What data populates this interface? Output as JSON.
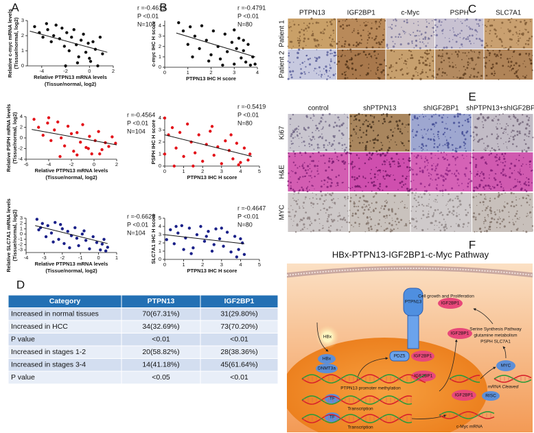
{
  "panel_labels": [
    "A",
    "B",
    "C",
    "D",
    "E",
    "F"
  ],
  "chart_data": [
    {
      "type": "scatter",
      "color": "#111111",
      "xlabel": [
        "Relative PTPN13 mRNA levels",
        "(Tissue/normal, log2)"
      ],
      "ylabel": [
        "Relative c-myc mRNA levels",
        "(Tissue/normal, log2)"
      ],
      "annotations": [
        "r =-0.4613",
        "P <0.01",
        "N=104"
      ],
      "xlim": [
        -5.2,
        2
      ],
      "ylim": [
        0,
        3
      ],
      "xticks": [
        -4,
        -2,
        0,
        2
      ],
      "yticks": [
        0,
        1,
        2,
        3
      ],
      "x": [
        -4.6,
        -4.2,
        -3.9,
        -3.5,
        -3.2,
        -3.0,
        -2.8,
        -2.5,
        -2.3,
        -2.1,
        -1.9,
        -1.7,
        -1.5,
        -1.3,
        -1.1,
        -0.9,
        -0.7,
        -0.5,
        -0.3,
        -0.1,
        0.1,
        0.3,
        0.5,
        0.7,
        0.9,
        1.1,
        -2.0,
        -1.0,
        0.0,
        -3.6
      ],
      "y": [
        2.6,
        2.2,
        1.9,
        2.4,
        1.6,
        2.0,
        2.7,
        1.8,
        2.5,
        1.3,
        2.2,
        1.0,
        1.9,
        2.4,
        1.4,
        0.6,
        1.7,
        2.1,
        0.9,
        1.5,
        0.3,
        1.6,
        1.1,
        0.0,
        1.9,
        0.8,
        0.0,
        0.2,
        0.5,
        2.8
      ],
      "trendline": {
        "x": [
          -5,
          1.5
        ],
        "y": [
          2.3,
          0.9
        ]
      }
    },
    {
      "type": "scatter",
      "color": "#e3141b",
      "xlabel": [
        "Relative PTPN13 mRNA levels",
        "(Tissue/normal, log2)"
      ],
      "ylabel": [
        "Relative PSPH mRNA levels",
        "(Tissue/normal, log2)"
      ],
      "annotations": [
        "r =-0.4564",
        "P <0.01",
        "N=104"
      ],
      "xlim": [
        -6,
        2
      ],
      "ylim": [
        -4,
        4
      ],
      "xticks": [
        -6,
        -4,
        -2,
        0,
        2
      ],
      "yticks": [
        -4,
        -2,
        0,
        2,
        4
      ],
      "x": [
        -5.3,
        -4.9,
        -4.5,
        -4.1,
        -3.8,
        -3.5,
        -3.2,
        -2.9,
        -2.6,
        -2.3,
        -2.0,
        -1.8,
        -1.5,
        -1.2,
        -1.0,
        -0.7,
        -0.4,
        -0.2,
        0.1,
        0.4,
        0.7,
        1.0,
        1.3,
        1.6,
        1.9,
        -3.0,
        -1.5,
        -0.5,
        0.5,
        -4.0
      ],
      "y": [
        3.5,
        2.0,
        0.5,
        2.8,
        -0.5,
        1.5,
        3.0,
        0.0,
        -1.5,
        2.2,
        0.8,
        -2.5,
        1.0,
        -0.8,
        2.5,
        -1.8,
        0.3,
        -3.0,
        -0.5,
        1.2,
        -2.2,
        -0.9,
        -1.6,
        0.2,
        -1.0,
        -3.5,
        -3.2,
        -2.0,
        -3.0,
        3.8
      ],
      "trendline": {
        "x": [
          -5.5,
          2
        ],
        "y": [
          1.6,
          -1.3
        ]
      }
    },
    {
      "type": "scatter",
      "color": "#1b2189",
      "xlabel": [
        "Relative PTPN13 mRNA levels",
        "(Tissue/normal, log2)"
      ],
      "ylabel": [
        "Relative SLC7A1 mRNA levels",
        "(Tissue/normal, log2)"
      ],
      "annotations": [
        "r =-0.6629",
        "P <0.01",
        "N=104"
      ],
      "xlim": [
        -4,
        1
      ],
      "ylim": [
        -3.5,
        3
      ],
      "xticks": [
        -4,
        -3,
        -2,
        -1,
        0,
        1
      ],
      "yticks": [
        -3,
        -2,
        -1,
        0,
        1,
        2,
        3
      ],
      "x": [
        -3.4,
        -3.3,
        -3.1,
        -2.9,
        -2.8,
        -2.6,
        -2.4,
        -2.2,
        -2.0,
        -1.9,
        -1.7,
        -1.5,
        -1.3,
        -1.1,
        -0.9,
        -0.7,
        -0.5,
        -0.3,
        -0.1,
        0.1,
        0.3,
        0.5,
        -2.5,
        -1.6,
        -0.8,
        0.2,
        -3.2,
        -2.1,
        -1.2,
        0.4
      ],
      "y": [
        2.8,
        0.8,
        2.0,
        -0.5,
        1.6,
        0.2,
        2.2,
        -1.0,
        1.0,
        -1.8,
        0.5,
        -0.3,
        1.2,
        -2.2,
        0.0,
        -1.2,
        -2.8,
        -0.5,
        -1.6,
        -3.0,
        -1.0,
        -2.5,
        -1.5,
        -2.6,
        0.6,
        -1.9,
        1.2,
        1.8,
        -0.8,
        -3.2
      ],
      "trendline": {
        "x": [
          -3.5,
          0.5
        ],
        "y": [
          1.6,
          -1.8
        ]
      }
    },
    {
      "type": "scatter",
      "color": "#111111",
      "xlabel": [
        "PTPN13 IHC H score"
      ],
      "ylabel": [
        "c-myc IHC H score"
      ],
      "annotations": [
        "r =-0.4791",
        "P <0.01",
        "N=80"
      ],
      "xlim": [
        0,
        4
      ],
      "ylim": [
        0,
        4.5
      ],
      "xticks": [
        0,
        1,
        2,
        3,
        4
      ],
      "yticks": [
        0,
        1,
        2,
        3,
        4
      ],
      "x": [
        0.6,
        0.8,
        1.0,
        1.1,
        1.3,
        1.5,
        1.6,
        1.8,
        2.0,
        2.1,
        2.3,
        2.4,
        2.6,
        2.7,
        2.9,
        3.0,
        3.1,
        3.2,
        3.3,
        3.4,
        3.5,
        3.6,
        3.7,
        3.8,
        3.9,
        1.9,
        2.5,
        3.0,
        1.2,
        3.4
      ],
      "y": [
        4.3,
        3.5,
        2.2,
        3.9,
        3.0,
        1.8,
        4.0,
        2.6,
        1.2,
        3.5,
        2.0,
        0.8,
        3.2,
        1.5,
        2.4,
        0.3,
        1.8,
        2.8,
        0.9,
        1.6,
        0.5,
        2.2,
        0.2,
        1.0,
        0.3,
        0.6,
        0.2,
        3.6,
        1.0,
        2.6
      ],
      "trendline": {
        "x": [
          0.5,
          3.9
        ],
        "y": [
          3.3,
          1.0
        ]
      }
    },
    {
      "type": "scatter",
      "color": "#e3141b",
      "xlabel": [
        "PTPN13 IHC H score"
      ],
      "ylabel": [
        "PSPH IHC H score"
      ],
      "annotations": [
        "r =-0.5419",
        "P <0.01",
        "N=80"
      ],
      "xlim": [
        0,
        5
      ],
      "ylim": [
        0,
        4
      ],
      "xticks": [
        0,
        1,
        2,
        3,
        4,
        5
      ],
      "yticks": [
        0,
        1,
        2,
        3,
        4
      ],
      "x": [
        0.0,
        0.2,
        0.4,
        0.6,
        0.8,
        1.0,
        1.2,
        1.4,
        1.6,
        1.8,
        2.0,
        2.2,
        2.4,
        2.6,
        2.8,
        3.0,
        3.2,
        3.4,
        3.6,
        3.8,
        4.0,
        4.2,
        4.4,
        4.5,
        0.5,
        1.5,
        2.5,
        3.5,
        0.0,
        3.9
      ],
      "y": [
        4.0,
        2.6,
        3.2,
        1.5,
        2.8,
        0.8,
        3.5,
        2.0,
        1.1,
        2.6,
        0.4,
        1.8,
        2.9,
        0.9,
        1.6,
        0.2,
        2.1,
        1.3,
        0.6,
        1.9,
        0.3,
        1.5,
        0.5,
        1.0,
        0.0,
        0.0,
        3.3,
        2.6,
        1.0,
        0.1
      ],
      "trendline": {
        "x": [
          0,
          4.6
        ],
        "y": [
          2.6,
          0.8
        ]
      }
    },
    {
      "type": "scatter",
      "color": "#1b2189",
      "xlabel": [
        "PTPN13 IHC H score"
      ],
      "ylabel": [
        "SLC7A1 IHC H score"
      ],
      "annotations": [
        "r =-0.4647",
        "P <0.01",
        "N=80"
      ],
      "xlim": [
        0,
        5
      ],
      "ylim": [
        0,
        5
      ],
      "xticks": [
        0,
        1,
        2,
        3,
        4,
        5
      ],
      "yticks": [
        0,
        1,
        2,
        3,
        4,
        5
      ],
      "x": [
        0.1,
        0.3,
        0.5,
        0.7,
        0.9,
        1.1,
        1.3,
        1.5,
        1.7,
        1.9,
        2.1,
        2.3,
        2.5,
        2.7,
        2.9,
        3.1,
        3.3,
        3.5,
        3.7,
        3.9,
        4.1,
        4.2,
        0.6,
        1.4,
        2.2,
        3.0,
        3.8,
        2.6,
        1.0,
        4.0
      ],
      "y": [
        2.4,
        3.6,
        1.9,
        3.2,
        4.1,
        2.6,
        3.8,
        1.4,
        3.0,
        4.0,
        2.2,
        3.4,
        1.0,
        3.7,
        2.5,
        1.6,
        3.3,
        0.9,
        2.8,
        1.2,
        2.0,
        0.6,
        4.0,
        0.7,
        2.8,
        3.8,
        0.3,
        1.8,
        1.2,
        2.5
      ],
      "trendline": {
        "x": [
          0,
          4.2
        ],
        "y": [
          3.0,
          1.9
        ]
      }
    }
  ],
  "panel_c": {
    "columns": [
      "PTPN13",
      "IGF2BP1",
      "c-Myc",
      "PSPH",
      "SLC7A1"
    ],
    "rows": [
      "Patient 1",
      "Patient 2"
    ]
  },
  "panel_e": {
    "columns": [
      "control",
      "shPTPN13",
      "shIGF2BP1",
      "shPTPN13+shIGF2BP1"
    ],
    "rows": [
      "Ki67",
      "H&E",
      "MYC"
    ]
  },
  "table": {
    "header": [
      "Category",
      "PTPN13",
      "IGF2BP1"
    ],
    "rows": [
      [
        "Increased in normal tissues",
        "70(67.31%)",
        "31(29.80%)"
      ],
      [
        "Increased in HCC",
        "34(32.69%)",
        "73(70.20%)"
      ],
      [
        "P value",
        "<0.01",
        "<0.01"
      ],
      [
        "Increased in stages 1-2",
        "20(58.82%)",
        "28(38.36%)"
      ],
      [
        "Increased in stages 3-4",
        "14(41.18%)",
        "45(61.64%)"
      ],
      [
        "P value",
        "<0.05",
        "<0.01"
      ]
    ]
  },
  "diagram": {
    "title": "HBx-PTPN13-IGF2BP1-c-Myc Pathway",
    "labels": [
      "Cell growth and Proliferation",
      "HBx",
      "PTPN13",
      "IGF2BP1",
      "PDZ5",
      "IGF2BP1",
      "Serine Synthesis Pathway",
      "glutamine metabolism",
      "PSPH SLC7A1",
      "IGF2BP1",
      "HBx",
      "DNMT3a",
      "IGF2BP1",
      "MYC",
      "PTPN13 promoter methylation",
      "IGF2BP1",
      "mRNA Cleaved",
      "RISC",
      "TF",
      "Transcription",
      "TF",
      "Transcription",
      "c-Myc mRNA"
    ]
  }
}
